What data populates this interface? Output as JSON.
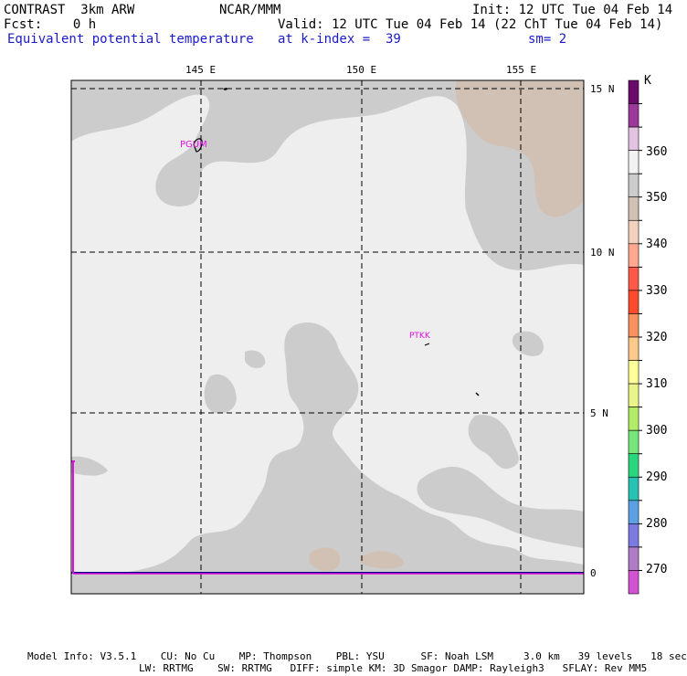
{
  "header": {
    "model": "CONTRAST  3km ARW",
    "center": "NCAR/MMM",
    "init": "Init: 12 UTC Tue 04 Feb 14",
    "fcst": "Fcst:    0 h",
    "valid": "Valid: 12 UTC Tue 04 Feb 14 (22 ChT Tue 04 Feb 14)",
    "field": "Equivalent potential temperature",
    "level": "at k-index =  39",
    "smooth": "sm= 2"
  },
  "map": {
    "lon_labels": [
      "145 E",
      "150 E",
      "155 E"
    ],
    "lat_labels": [
      "15 N",
      "10 N",
      "5 N",
      "0"
    ],
    "stations": [
      {
        "id": "PGUM"
      },
      {
        "id": "PTKK"
      }
    ]
  },
  "colorbar": {
    "unit": "K",
    "labels": [
      "360",
      "350",
      "340",
      "330",
      "320",
      "310",
      "300",
      "290",
      "280",
      "270"
    ],
    "colors": [
      "#6a0a6a",
      "#9b3a9b",
      "#e2c4e2",
      "#f2f2f2",
      "#cccccc",
      "#d1c1b4",
      "#f2d2bf",
      "#ffa78f",
      "#ff5a47",
      "#ff4b2c",
      "#f7925e",
      "#fbc98a",
      "#ffff99",
      "#e9f58a",
      "#b3ec66",
      "#76e67c",
      "#2ad67c",
      "#27c2b2",
      "#5aa0e2",
      "#7c7ae0",
      "#b07cc8",
      "#d253d2"
    ]
  },
  "footer": {
    "line1": "Model Info: V3.5.1    CU: No Cu    MP: Thompson    PBL: YSU      SF: Noah LSM     3.0 km   39 levels   18 sec",
    "line2": "LW: RRTMG    SW: RRTMG   DIFF: simple KM: 3D Smagor DAMP: Rayleigh3   SFLAY: Rev MM5"
  }
}
